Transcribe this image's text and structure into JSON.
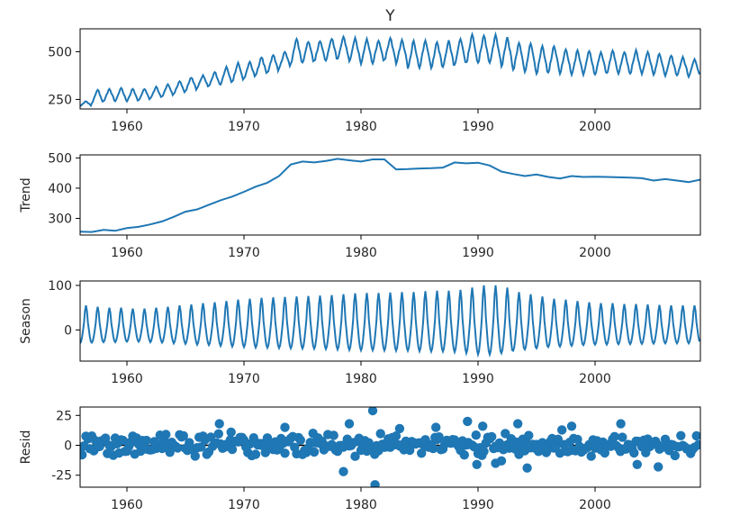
{
  "chart_data": [
    {
      "type": "line",
      "title": "Y",
      "ylabel": "",
      "xlim": [
        1956,
        2009
      ],
      "ylim": [
        200,
        620
      ],
      "yticks": [
        250,
        500
      ],
      "xticks": [
        1960,
        1970,
        1980,
        1990,
        2000
      ],
      "series": [
        {
          "color": "#1f77b4",
          "x": [
            1956,
            1957,
            1958,
            1959,
            1960,
            1961,
            1962,
            1963,
            1964,
            1965,
            1966,
            1967,
            1968,
            1969,
            1970,
            1971,
            1972,
            1973,
            1974,
            1975,
            1976,
            1977,
            1978,
            1979,
            1980,
            1981,
            1982,
            1983,
            1984,
            1985,
            1986,
            1987,
            1988,
            1989,
            1990,
            1991,
            1992,
            1993,
            1994,
            1995,
            1996,
            1997,
            1998,
            1999,
            2000,
            2001,
            2002,
            2003,
            2004,
            2005,
            2006,
            2007,
            2008
          ],
          "peaks": [
            240,
            300,
            305,
            310,
            305,
            305,
            315,
            330,
            345,
            365,
            375,
            395,
            420,
            440,
            445,
            470,
            485,
            500,
            565,
            555,
            555,
            570,
            580,
            570,
            565,
            560,
            570,
            560,
            555,
            560,
            550,
            555,
            570,
            590,
            585,
            590,
            575,
            545,
            540,
            525,
            530,
            515,
            505,
            505,
            500,
            505,
            500,
            505,
            495,
            490,
            480,
            470,
            460
          ],
          "troughs": [
            215,
            230,
            240,
            240,
            240,
            245,
            255,
            265,
            280,
            295,
            310,
            320,
            330,
            345,
            360,
            380,
            390,
            415,
            440,
            440,
            450,
            455,
            460,
            445,
            440,
            440,
            455,
            440,
            410,
            420,
            415,
            420,
            430,
            440,
            440,
            440,
            420,
            400,
            395,
            385,
            390,
            385,
            380,
            380,
            380,
            385,
            385,
            385,
            385,
            380,
            375,
            375,
            370
          ]
        }
      ]
    },
    {
      "type": "line",
      "title": "",
      "ylabel": "Trend",
      "xlim": [
        1956,
        2009
      ],
      "ylim": [
        245,
        510
      ],
      "yticks": [
        300,
        400,
        500
      ],
      "xticks": [
        1960,
        1970,
        1980,
        1990,
        2000
      ],
      "series": [
        {
          "color": "#1f77b4",
          "x": [
            1956,
            1957,
            1958,
            1959,
            1960,
            1961,
            1962,
            1963,
            1964,
            1965,
            1966,
            1967,
            1968,
            1969,
            1970,
            1971,
            1972,
            1973,
            1974,
            1975,
            1976,
            1977,
            1978,
            1979,
            1980,
            1981,
            1982,
            1983,
            1984,
            1985,
            1986,
            1987,
            1988,
            1989,
            1990,
            1991,
            1992,
            1993,
            1994,
            1995,
            1996,
            1997,
            1998,
            1999,
            2000,
            2001,
            2002,
            2003,
            2004,
            2005,
            2006,
            2007,
            2008,
            2009
          ],
          "y": [
            256,
            255,
            262,
            259,
            268,
            272,
            280,
            290,
            305,
            322,
            330,
            345,
            360,
            372,
            388,
            405,
            418,
            440,
            478,
            488,
            485,
            490,
            497,
            492,
            488,
            495,
            495,
            462,
            463,
            465,
            466,
            468,
            485,
            482,
            484,
            475,
            455,
            447,
            440,
            445,
            437,
            432,
            440,
            437,
            438,
            437,
            436,
            435,
            433,
            425,
            430,
            425,
            420,
            428
          ]
        }
      ]
    },
    {
      "type": "line",
      "title": "",
      "ylabel": "Season",
      "xlim": [
        1956,
        2009
      ],
      "ylim": [
        -70,
        110
      ],
      "yticks": [
        0,
        100
      ],
      "xticks": [
        1960,
        1970,
        1980,
        1990,
        2000
      ],
      "series": [
        {
          "color": "#1f77b4",
          "x": [
            1956,
            1957,
            1958,
            1959,
            1960,
            1961,
            1962,
            1963,
            1964,
            1965,
            1966,
            1967,
            1968,
            1969,
            1970,
            1971,
            1972,
            1973,
            1974,
            1975,
            1976,
            1977,
            1978,
            1979,
            1980,
            1981,
            1982,
            1983,
            1984,
            1985,
            1986,
            1987,
            1988,
            1989,
            1990,
            1991,
            1992,
            1993,
            1994,
            1995,
            1996,
            1997,
            1998,
            1999,
            2000,
            2001,
            2002,
            2003,
            2004,
            2005,
            2006,
            2007,
            2008
          ],
          "amplitude": [
            55,
            52,
            50,
            50,
            48,
            48,
            50,
            52,
            55,
            57,
            60,
            62,
            65,
            68,
            70,
            72,
            73,
            74,
            75,
            76,
            77,
            78,
            80,
            82,
            83,
            83,
            84,
            85,
            85,
            87,
            88,
            88,
            90,
            95,
            100,
            100,
            95,
            85,
            80,
            75,
            70,
            68,
            65,
            62,
            60,
            60,
            58,
            58,
            57,
            56,
            55,
            55,
            55
          ]
        }
      ]
    },
    {
      "type": "scatter",
      "title": "",
      "ylabel": "Resid",
      "xlim": [
        1956,
        2009
      ],
      "ylim": [
        -35,
        32
      ],
      "yticks": [
        -25,
        0,
        25
      ],
      "xticks": [
        1960,
        1970,
        1980,
        1990,
        2000
      ],
      "baseline": 0,
      "series": [
        {
          "color": "#1f77b4",
          "x": [
            1967.9,
            1968.9,
            1973.5,
            1975.9,
            1978.5,
            1979.0,
            1981.0,
            1981.2,
            1983.3,
            1986.4,
            1989.1,
            1989.9,
            1990.4,
            1991.5,
            1992.0,
            1993.4,
            1994.2,
            1998.0,
            2002.2,
            2003.6,
            2005.4
          ],
          "y": [
            18,
            11,
            15,
            10,
            -22,
            18,
            29,
            -33,
            14,
            15,
            20,
            -16,
            16,
            -15,
            -13,
            18,
            -19,
            16,
            18,
            -16,
            -18
          ]
        }
      ]
    }
  ]
}
